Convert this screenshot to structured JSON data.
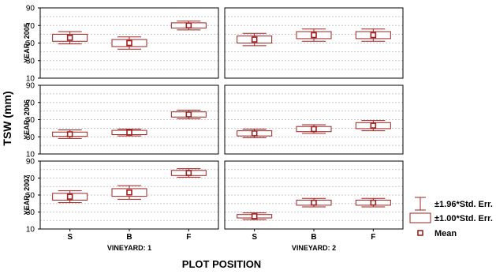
{
  "chart_data": {
    "type": "box",
    "ylabel": "TSW (mm)",
    "xlabel": "PLOT POSITION",
    "categories": [
      "S",
      "B",
      "F"
    ],
    "panel_columns": [
      "VINEYARD: 1",
      "VINEYARD: 2"
    ],
    "rows": [
      {
        "label": "YEAR: 2005",
        "ylim": [
          10,
          90
        ],
        "yticks": [
          10,
          30,
          50,
          70,
          90
        ],
        "yticks_minor": [
          20,
          40,
          60,
          80
        ],
        "panels": [
          {
            "mean": [
              56,
              50,
              70
            ],
            "se1": [
              4,
              4,
              3
            ],
            "ci196": [
              7,
              7,
              5
            ]
          },
          {
            "mean": [
              54,
              59,
              59
            ],
            "se1": [
              4,
              4,
              4
            ],
            "ci196": [
              7,
              7,
              7
            ]
          }
        ]
      },
      {
        "label": "YEAR: 2006",
        "ylim": [
          10,
          90
        ],
        "yticks": [
          10,
          30,
          50,
          70,
          90
        ],
        "yticks_minor": [
          20,
          40,
          60,
          80
        ],
        "panels": [
          {
            "mean": [
              33,
              35,
              56
            ],
            "se1": [
              2.5,
              2.5,
              3
            ],
            "ci196": [
              5,
              4,
              5
            ]
          },
          {
            "mean": [
              34,
              39,
              43
            ],
            "se1": [
              3,
              3,
              3.5
            ],
            "ci196": [
              5,
              5,
              6
            ]
          }
        ]
      },
      {
        "label": "YEAR: 2007",
        "ylim": [
          10,
          90
        ],
        "yticks": [
          10,
          30,
          50,
          70,
          90
        ],
        "yticks_minor": [
          20,
          40,
          60,
          80
        ],
        "panels": [
          {
            "mean": [
              48,
              53,
              76
            ],
            "se1": [
              4,
              4.5,
              3
            ],
            "ci196": [
              7,
              8,
              5
            ]
          },
          {
            "mean": [
              25,
              41,
              41
            ],
            "se1": [
              2,
              3,
              3
            ],
            "ci196": [
              4,
              5,
              5
            ]
          }
        ]
      }
    ],
    "legend": {
      "position": "right",
      "items": [
        "±1.96*Std. Err.",
        "±1.00*Std. Err.",
        "Mean"
      ]
    },
    "colors": {
      "series": "#a02020",
      "frame": "#000000",
      "grid": "#c8c8c8"
    },
    "grid": true
  }
}
